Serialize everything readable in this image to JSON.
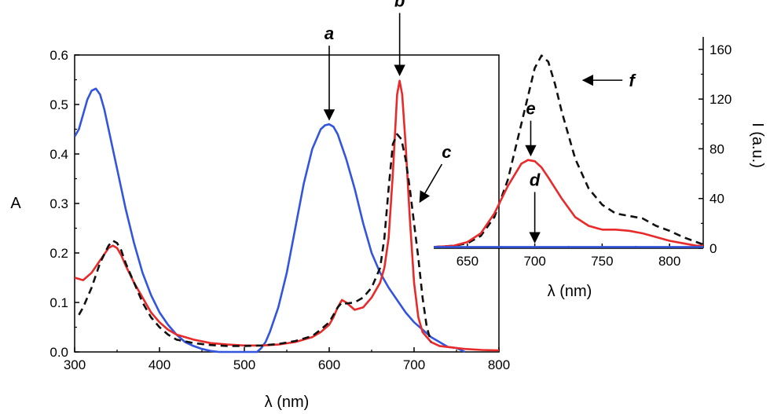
{
  "chart_data": [
    {
      "type": "line",
      "xlabel": "λ (nm)",
      "ylabel": "A",
      "xlim": [
        300,
        800
      ],
      "ylim": [
        0,
        0.6
      ],
      "xticks": [
        300,
        400,
        500,
        600,
        700,
        800
      ],
      "yticks": [
        0.0,
        0.1,
        0.2,
        0.3,
        0.4,
        0.5,
        0.6
      ],
      "xtick_labels": [
        "300",
        "400",
        "500",
        "600",
        "700",
        "800"
      ],
      "ytick_labels": [
        "0.0",
        "0.1",
        "0.2",
        "0.3",
        "0.4",
        "0.5",
        "0.6"
      ],
      "grid": false,
      "series": [
        {
          "color": "#3355dd",
          "style": "solid",
          "x": [
            300,
            305,
            310,
            315,
            320,
            325,
            330,
            335,
            340,
            350,
            360,
            370,
            380,
            390,
            400,
            410,
            420,
            430,
            440,
            450,
            460,
            470,
            515,
            520,
            525,
            530,
            540,
            550,
            560,
            570,
            580,
            590,
            595,
            600,
            605,
            610,
            620,
            630,
            640,
            650,
            660,
            670,
            680,
            690,
            700,
            710,
            720,
            730,
            740,
            750,
            760
          ],
          "y": [
            0.435,
            0.45,
            0.48,
            0.51,
            0.528,
            0.532,
            0.52,
            0.49,
            0.45,
            0.37,
            0.29,
            0.22,
            0.16,
            0.115,
            0.08,
            0.055,
            0.035,
            0.02,
            0.012,
            0.006,
            0.002,
            0.0,
            0.0,
            0.008,
            0.02,
            0.04,
            0.09,
            0.16,
            0.25,
            0.34,
            0.41,
            0.45,
            0.458,
            0.46,
            0.455,
            0.44,
            0.39,
            0.33,
            0.26,
            0.2,
            0.16,
            0.13,
            0.105,
            0.08,
            0.06,
            0.045,
            0.03,
            0.02,
            0.01,
            0.008,
            0.0
          ]
        },
        {
          "color": "#e82a2a",
          "style": "solid",
          "x": [
            300,
            310,
            320,
            330,
            340,
            345,
            350,
            355,
            360,
            370,
            380,
            390,
            400,
            410,
            420,
            440,
            460,
            480,
            500,
            520,
            540,
            560,
            580,
            590,
            600,
            605,
            610,
            615,
            620,
            630,
            640,
            650,
            660,
            665,
            670,
            675,
            680,
            683,
            686,
            690,
            695,
            700,
            705,
            710,
            720,
            730,
            740,
            750,
            760,
            780,
            800
          ],
          "y": [
            0.15,
            0.145,
            0.16,
            0.185,
            0.21,
            0.215,
            0.21,
            0.195,
            0.175,
            0.14,
            0.11,
            0.08,
            0.06,
            0.045,
            0.035,
            0.025,
            0.018,
            0.015,
            0.013,
            0.013,
            0.015,
            0.02,
            0.03,
            0.04,
            0.055,
            0.07,
            0.09,
            0.105,
            0.1,
            0.085,
            0.09,
            0.11,
            0.14,
            0.17,
            0.23,
            0.36,
            0.52,
            0.548,
            0.52,
            0.42,
            0.27,
            0.14,
            0.07,
            0.04,
            0.02,
            0.012,
            0.01,
            0.008,
            0.006,
            0.004,
            0.003
          ]
        },
        {
          "color": "#111111",
          "style": "dashed",
          "x": [
            305,
            310,
            320,
            330,
            340,
            345,
            350,
            355,
            360,
            370,
            380,
            390,
            400,
            410,
            420,
            440,
            460,
            480,
            500,
            520,
            540,
            560,
            580,
            590,
            600,
            605,
            610,
            615,
            620,
            630,
            640,
            650,
            660,
            665,
            670,
            675,
            680,
            685,
            690,
            695,
            700,
            705,
            710,
            715,
            720
          ],
          "y": [
            0.075,
            0.09,
            0.13,
            0.18,
            0.215,
            0.225,
            0.22,
            0.205,
            0.18,
            0.14,
            0.1,
            0.07,
            0.05,
            0.035,
            0.025,
            0.018,
            0.014,
            0.012,
            0.012,
            0.013,
            0.016,
            0.022,
            0.032,
            0.045,
            0.06,
            0.075,
            0.09,
            0.1,
            0.098,
            0.1,
            0.11,
            0.13,
            0.17,
            0.23,
            0.33,
            0.42,
            0.44,
            0.43,
            0.39,
            0.33,
            0.26,
            0.19,
            0.11,
            0.05,
            0.02
          ]
        }
      ],
      "annotations": [
        {
          "text": "a",
          "x": 600,
          "y": 0.46
        },
        {
          "text": "b",
          "x": 683,
          "y": 0.55
        },
        {
          "text": "c",
          "x": 705,
          "y": 0.3
        }
      ]
    },
    {
      "type": "line",
      "xlabel": "λ (nm)",
      "ylabel": "I (a.u.)",
      "xlim": [
        625,
        825
      ],
      "ylim": [
        0,
        170
      ],
      "xticks": [
        650,
        700,
        750,
        800
      ],
      "yticks": [
        0,
        40,
        80,
        120,
        160
      ],
      "xtick_labels": [
        "650",
        "700",
        "750",
        "800"
      ],
      "ytick_labels": [
        "0",
        "40",
        "80",
        "120",
        "160"
      ],
      "grid": false,
      "series": [
        {
          "color": "#111111",
          "style": "dashed",
          "x": [
            625,
            640,
            650,
            660,
            670,
            680,
            690,
            700,
            705,
            710,
            715,
            720,
            730,
            740,
            750,
            760,
            770,
            780,
            790,
            800,
            810,
            820,
            825
          ],
          "y": [
            1,
            2,
            4,
            10,
            25,
            55,
            100,
            145,
            155,
            150,
            132,
            110,
            72,
            48,
            35,
            28,
            26,
            24,
            18,
            14,
            9,
            5,
            3
          ]
        },
        {
          "color": "#e82a2a",
          "style": "solid",
          "x": [
            625,
            640,
            650,
            660,
            670,
            680,
            690,
            695,
            700,
            705,
            710,
            720,
            730,
            740,
            750,
            760,
            770,
            780,
            790,
            800,
            810,
            820,
            825
          ],
          "y": [
            1,
            2,
            5,
            12,
            28,
            50,
            68,
            71,
            70,
            65,
            57,
            40,
            25,
            18,
            15,
            15,
            14,
            12,
            9,
            6,
            4,
            2,
            2
          ]
        },
        {
          "color": "#3355dd",
          "style": "solid",
          "x": [
            625,
            825
          ],
          "y": [
            1,
            1
          ]
        }
      ],
      "annotations": [
        {
          "text": "d",
          "x": 700,
          "y": 1
        },
        {
          "text": "e",
          "x": 697,
          "y": 71
        },
        {
          "text": "f",
          "x": 733,
          "y": 132
        }
      ]
    }
  ]
}
